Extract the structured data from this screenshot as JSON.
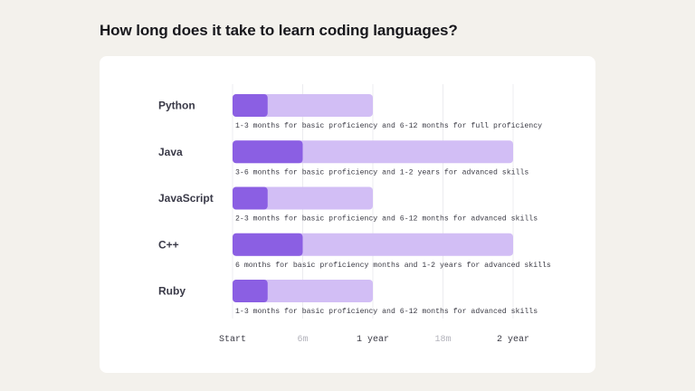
{
  "chart_data": {
    "type": "bar",
    "title": "How long does it take to learn coding languages?",
    "x_unit": "months",
    "xlim": [
      0,
      24
    ],
    "ticks": [
      {
        "value": 0,
        "label": "Start",
        "minor": false
      },
      {
        "value": 6,
        "label": "6m",
        "minor": true
      },
      {
        "value": 12,
        "label": "1 year",
        "minor": false
      },
      {
        "value": 18,
        "label": "18m",
        "minor": true
      },
      {
        "value": 24,
        "label": "2 year",
        "minor": false
      }
    ],
    "grid": true,
    "categories": [
      "Python",
      "Java",
      "JavaScript",
      "C++",
      "Ruby"
    ],
    "series": [
      {
        "role": "basic",
        "values": [
          3,
          6,
          3,
          6,
          3
        ],
        "color": "#8b5fe3"
      },
      {
        "role": "full",
        "values": [
          12,
          24,
          12,
          24,
          12
        ],
        "color": "#d2bef5"
      }
    ],
    "notes": [
      "1-3 months for basic proficiency and 6-12 months for full proficiency",
      "3-6 months for basic proficiency and 1-2 years for advanced skills",
      "2-3 months for basic proficiency and 6-12 months for advanced skills",
      "6 months for basic proficiency months and 1-2 years for advanced skills",
      "1-3 months for basic proficiency and 6-12 months for advanced skills"
    ]
  }
}
